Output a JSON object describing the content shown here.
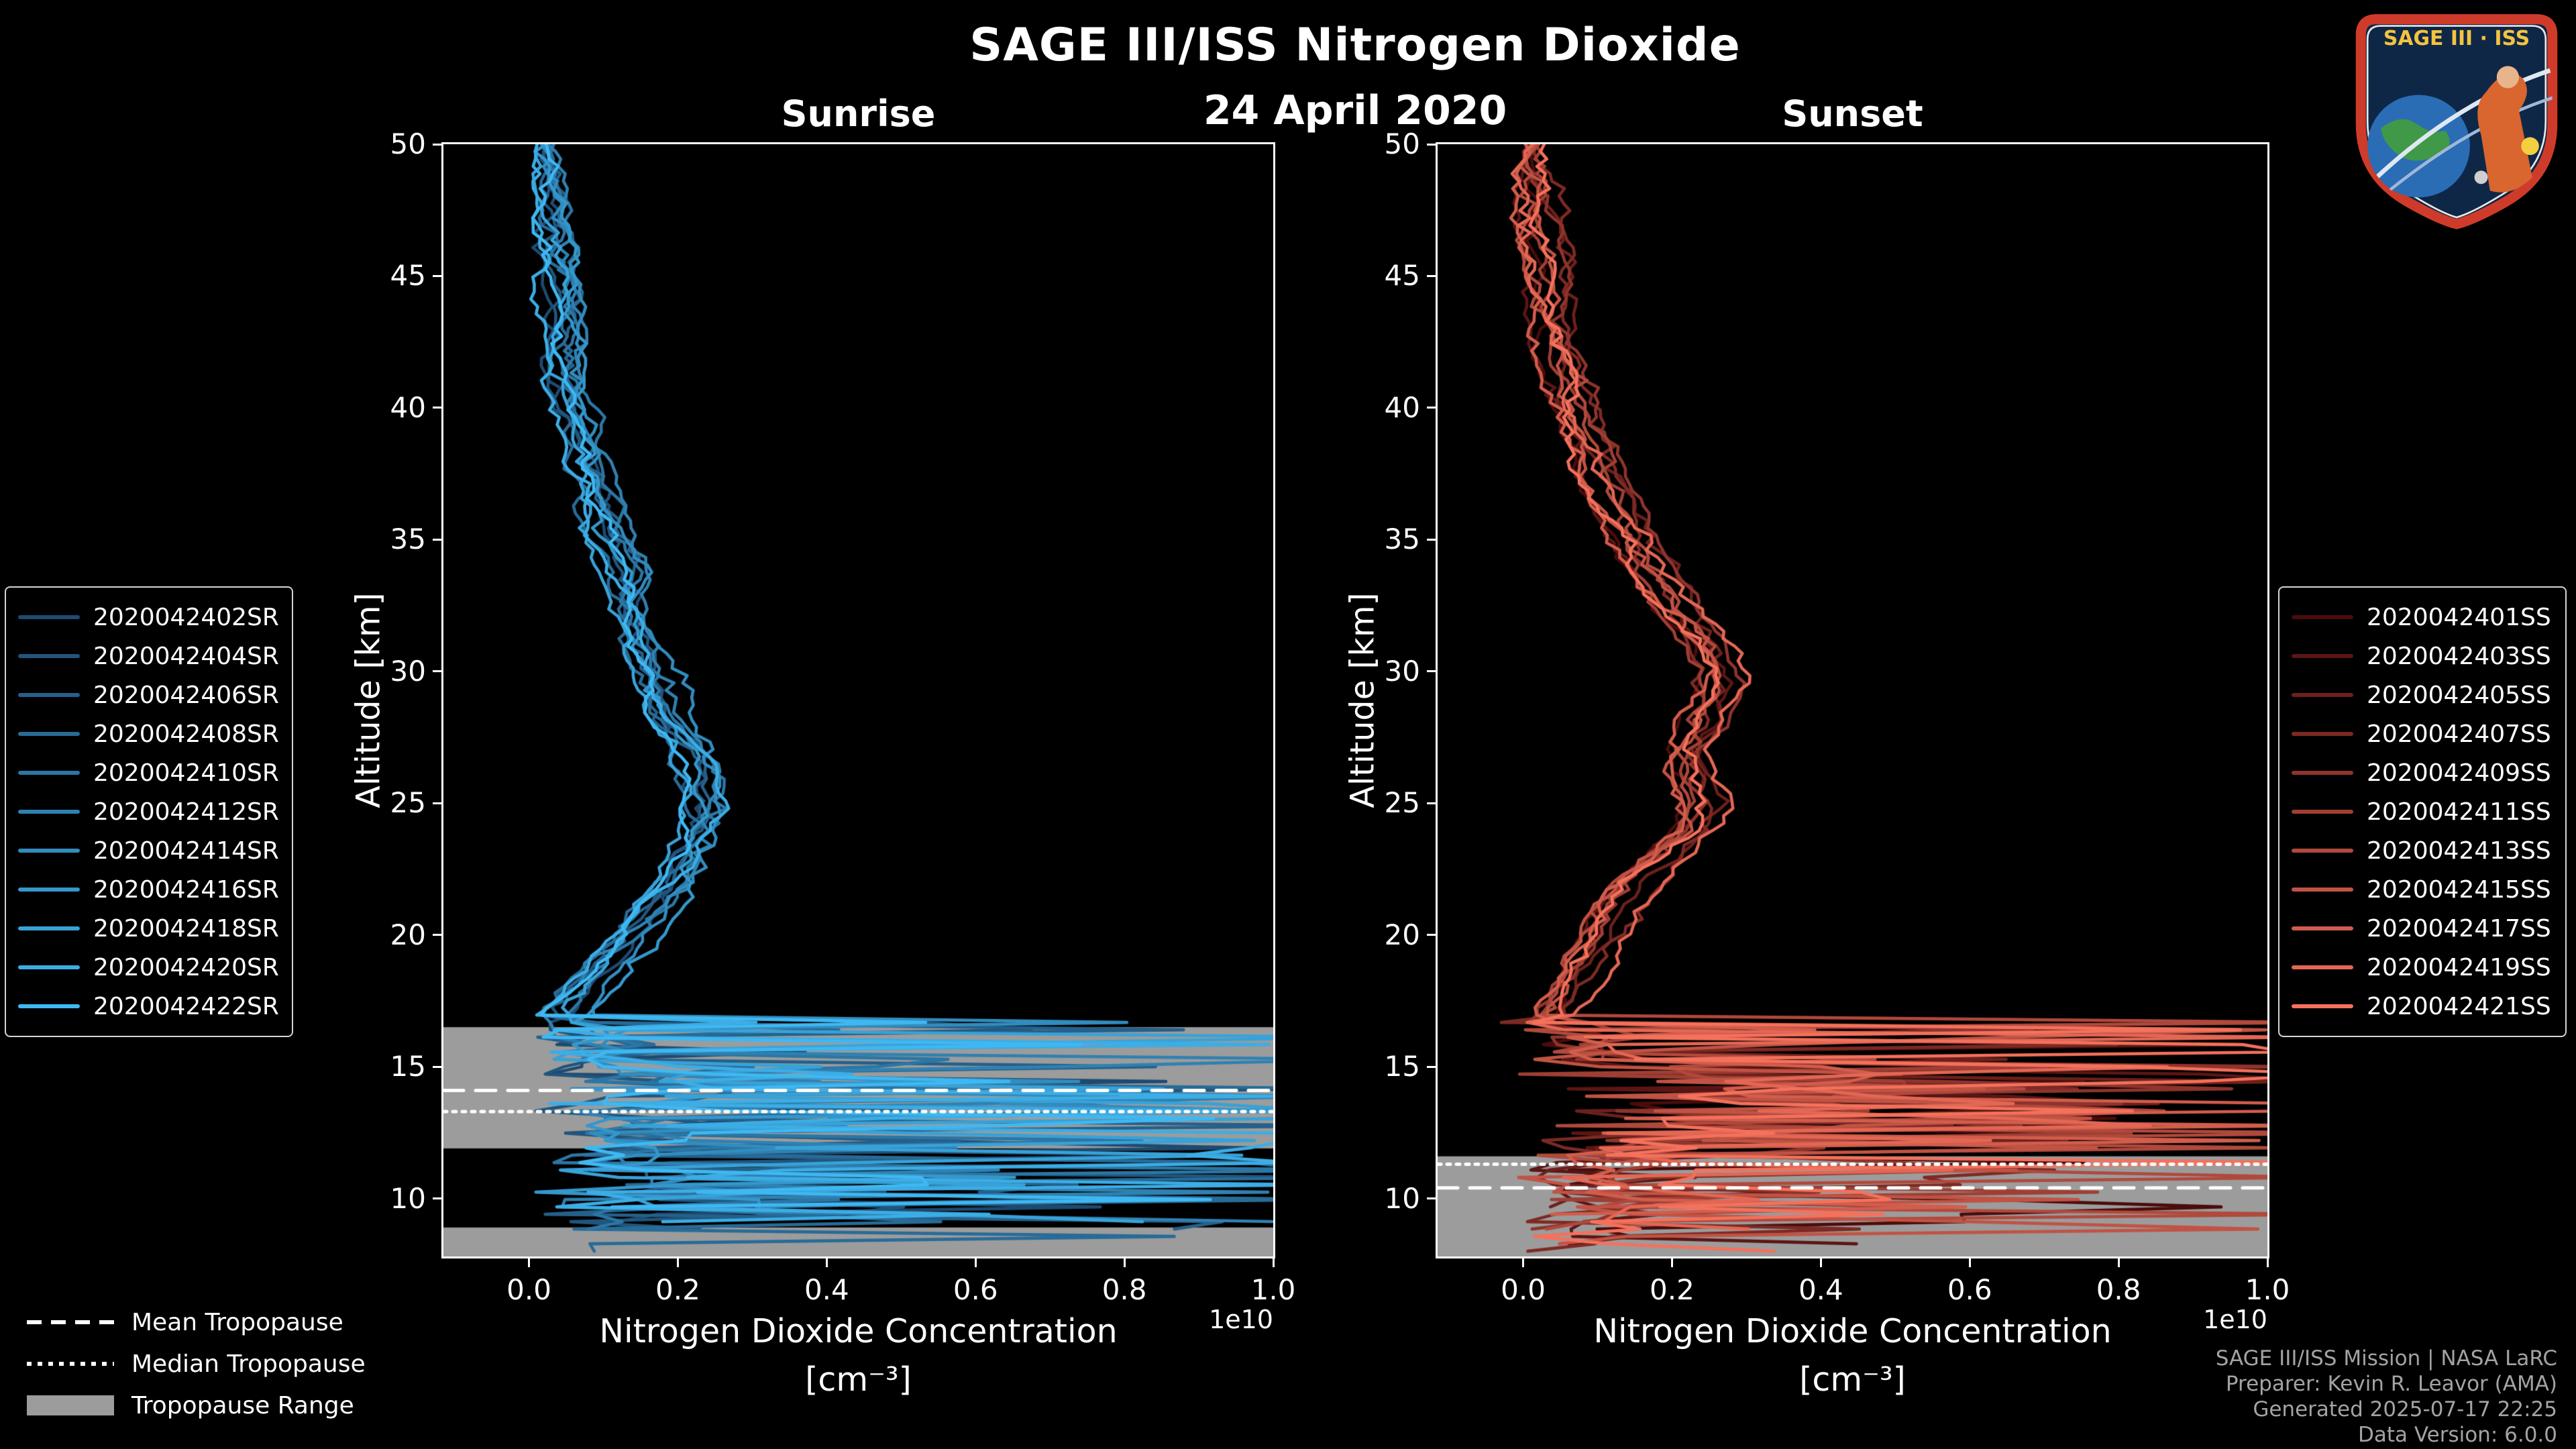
{
  "title": "SAGE III/ISS Nitrogen Dioxide",
  "date": "24 April 2020",
  "logo": {
    "text": "SAGE III · ISS"
  },
  "footer": {
    "lines": [
      "SAGE III/ISS Mission | NASA LaRC",
      "Preparer: Kevin R. Leavor (AMA)",
      "Generated 2025-07-17 22:25",
      "Data Version: 6.0.0"
    ]
  },
  "tropopause_legend": {
    "mean": "Mean Tropopause",
    "median": "Median Tropopause",
    "range": "Tropopause Range"
  },
  "chart_data": [
    {
      "type": "line",
      "title": "Sunrise",
      "xlabel": "Nitrogen Dioxide Concentration",
      "xlabel_units": "[cm⁻³]",
      "x_offset_label": "1e10",
      "x_scale_factor": 10000000000.0,
      "ylabel": "Altitude [km]",
      "xlim": [
        -0.115,
        1.0
      ],
      "ylim": [
        7.8,
        50
      ],
      "xticks": [
        0.0,
        0.2,
        0.4,
        0.6,
        0.8,
        1.0
      ],
      "yticks": [
        10,
        15,
        20,
        25,
        30,
        35,
        40,
        45,
        50
      ],
      "grid": false,
      "legend_position": "outside-left",
      "series": [
        {
          "name": "2020042402SR",
          "color": "#1E4A70"
        },
        {
          "name": "2020042404SR",
          "color": "#21557D"
        },
        {
          "name": "2020042406SR",
          "color": "#25608A"
        },
        {
          "name": "2020042408SR",
          "color": "#286B97"
        },
        {
          "name": "2020042410SR",
          "color": "#2B76A4"
        },
        {
          "name": "2020042412SR",
          "color": "#2F81B1"
        },
        {
          "name": "2020042414SR",
          "color": "#328CBE"
        },
        {
          "name": "2020042416SR",
          "color": "#3597CB"
        },
        {
          "name": "2020042418SR",
          "color": "#38A2D8"
        },
        {
          "name": "2020042420SR",
          "color": "#3CADE5"
        },
        {
          "name": "2020042422SR",
          "color": "#3FB8F2"
        }
      ],
      "mean_profile": [
        [
          50,
          0.02
        ],
        [
          48,
          0.025
        ],
        [
          46,
          0.03
        ],
        [
          44,
          0.04
        ],
        [
          42,
          0.05
        ],
        [
          40,
          0.065
        ],
        [
          38,
          0.08
        ],
        [
          36,
          0.1
        ],
        [
          34,
          0.125
        ],
        [
          32,
          0.15
        ],
        [
          30,
          0.17
        ],
        [
          28,
          0.2
        ],
        [
          26,
          0.235
        ],
        [
          25,
          0.245
        ],
        [
          24,
          0.235
        ],
        [
          23,
          0.22
        ],
        [
          22,
          0.2
        ],
        [
          21,
          0.175
        ],
        [
          20,
          0.15
        ],
        [
          19,
          0.115
        ],
        [
          18,
          0.08
        ],
        [
          17,
          0.045
        ],
        [
          16,
          0.09
        ],
        [
          15,
          0.13
        ],
        [
          14,
          0.19
        ],
        [
          13,
          0.15
        ],
        [
          12,
          0.16
        ],
        [
          11,
          0.17
        ],
        [
          10,
          0.15
        ],
        [
          9,
          0.13
        ],
        [
          8,
          0.11
        ]
      ],
      "tropopause": {
        "mean_km": 14.1,
        "median_km": 13.3,
        "range_bands_km": [
          [
            11.9,
            16.5
          ],
          [
            7.8,
            8.9
          ]
        ],
        "range_color": "#9c9c9c"
      },
      "noise_model": {
        "seed": 42,
        "step_km": 0.28,
        "drift": 0.02,
        "drift_max": 0.035,
        "jitter": 0.012,
        "spike_below_km": 16.8,
        "spike_prob": 0.17,
        "spike_min": 0.3,
        "bottom_jitter_km": 1.9,
        "spike_bands": [
          {
            "range": [
              13.2,
              14.6
            ],
            "prob": 0.4,
            "min": 0.35
          },
          {
            "range": [
              8.0,
              12.2
            ],
            "prob": 0.42,
            "min": 0.3
          }
        ]
      }
    },
    {
      "type": "line",
      "title": "Sunset",
      "xlabel": "Nitrogen Dioxide Concentration",
      "xlabel_units": "[cm⁻³]",
      "x_offset_label": "1e10",
      "x_scale_factor": 10000000000.0,
      "ylabel": "Altitude [km]",
      "xlim": [
        -0.115,
        1.0
      ],
      "ylim": [
        7.8,
        50
      ],
      "xticks": [
        0.0,
        0.2,
        0.4,
        0.6,
        0.8,
        1.0
      ],
      "yticks": [
        10,
        15,
        20,
        25,
        30,
        35,
        40,
        45,
        50
      ],
      "grid": false,
      "legend_position": "outside-right",
      "series": [
        {
          "name": "2020042401SS",
          "color": "#4A0C0C"
        },
        {
          "name": "2020042403SS",
          "color": "#5B1614"
        },
        {
          "name": "2020042405SS",
          "color": "#6C201C"
        },
        {
          "name": "2020042407SS",
          "color": "#7D2A24"
        },
        {
          "name": "2020042409SS",
          "color": "#8E342C"
        },
        {
          "name": "2020042411SS",
          "color": "#9F3F34"
        },
        {
          "name": "2020042413SS",
          "color": "#B0493C"
        },
        {
          "name": "2020042415SS",
          "color": "#C15344"
        },
        {
          "name": "2020042417SS",
          "color": "#D25D4C"
        },
        {
          "name": "2020042419SS",
          "color": "#E36754"
        },
        {
          "name": "2020042421SS",
          "color": "#F4715C"
        }
      ],
      "mean_profile": [
        [
          50,
          0.015
        ],
        [
          48,
          0.02
        ],
        [
          46,
          0.028
        ],
        [
          44,
          0.038
        ],
        [
          42,
          0.05
        ],
        [
          40,
          0.07
        ],
        [
          38,
          0.095
        ],
        [
          36,
          0.13
        ],
        [
          34,
          0.17
        ],
        [
          32,
          0.22
        ],
        [
          31,
          0.25
        ],
        [
          30,
          0.27
        ],
        [
          29,
          0.26
        ],
        [
          28,
          0.24
        ],
        [
          27,
          0.225
        ],
        [
          26,
          0.23
        ],
        [
          25,
          0.245
        ],
        [
          24,
          0.235
        ],
        [
          23,
          0.2
        ],
        [
          22,
          0.16
        ],
        [
          21,
          0.13
        ],
        [
          20,
          0.11
        ],
        [
          19,
          0.09
        ],
        [
          18,
          0.07
        ],
        [
          17,
          0.05
        ],
        [
          16,
          0.08
        ],
        [
          15,
          0.13
        ],
        [
          14,
          0.27
        ],
        [
          13,
          0.3
        ],
        [
          12,
          0.2
        ],
        [
          11,
          0.14
        ],
        [
          10,
          0.12
        ],
        [
          9,
          0.1
        ],
        [
          8,
          0.08
        ]
      ],
      "tropopause": {
        "mean_km": 10.4,
        "median_km": 11.3,
        "range_bands_km": [
          [
            7.8,
            11.6
          ]
        ],
        "range_color": "#9c9c9c"
      },
      "noise_model": {
        "seed": 1337,
        "step_km": 0.28,
        "drift": 0.02,
        "drift_max": 0.035,
        "jitter": 0.012,
        "spike_below_km": 16.8,
        "spike_prob": 0.18,
        "spike_min": 0.3,
        "bottom_jitter_km": 1.9,
        "spike_bands": [
          {
            "range": [
              12.2,
              15.0
            ],
            "prob": 0.52,
            "min": 0.4
          },
          {
            "range": [
              9.5,
              11.5
            ],
            "prob": 0.34,
            "min": 0.3
          }
        ]
      }
    }
  ]
}
